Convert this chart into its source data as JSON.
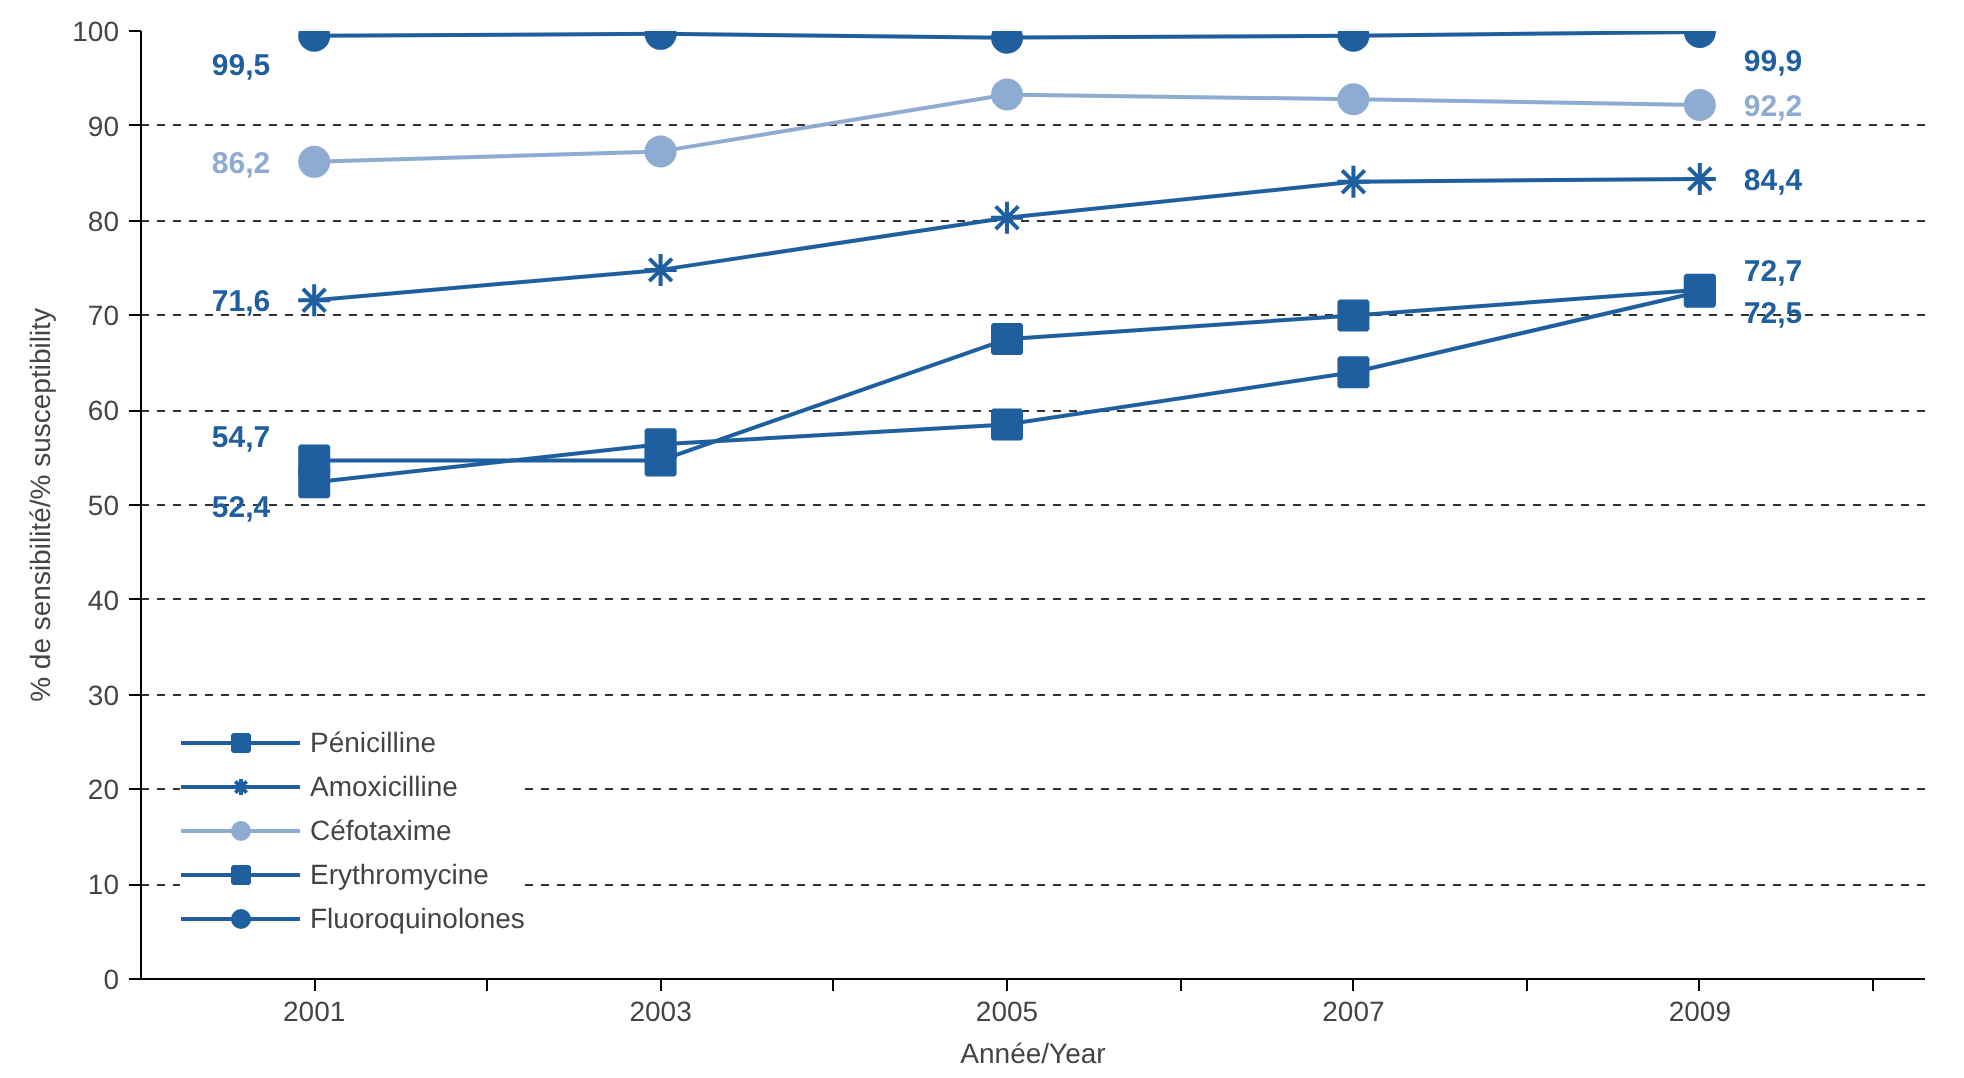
{
  "chart_data": {
    "type": "line",
    "xlabel": "Année/Year",
    "ylabel": "% de sensibilité/% susceptibility",
    "x": [
      2001,
      2003,
      2005,
      2007,
      2009
    ],
    "xlim": [
      2000,
      2010.3
    ],
    "xticks": [
      2001,
      {
        "value": 2002,
        "label": null
      },
      2003,
      {
        "value": 2004,
        "label": null
      },
      2005,
      {
        "value": 2006,
        "label": null
      },
      2007,
      {
        "value": 2008,
        "label": null
      },
      2009,
      {
        "value": 2010,
        "label": null
      }
    ],
    "ylim": [
      0,
      100
    ],
    "yticks": [
      0,
      10,
      20,
      30,
      40,
      50,
      60,
      70,
      80,
      90,
      100
    ],
    "grid": "y",
    "legend": "bottom left",
    "line_style": "solid",
    "series": [
      {
        "name": "Pénicilline",
        "color": "#1f5f9f",
        "marker": "square",
        "values": [
          54.7,
          54.7,
          67.5,
          70.0,
          72.7
        ],
        "value_labels": [
          "54,7",
          null,
          null,
          null,
          "72,7"
        ]
      },
      {
        "name": "Amoxicilline",
        "color": "#1f5f9f",
        "marker": "cross",
        "values": [
          71.6,
          74.8,
          80.3,
          84.1,
          84.4
        ],
        "value_labels": [
          "71,6",
          null,
          null,
          null,
          "84,4"
        ]
      },
      {
        "name": "Céfotaxime",
        "color": "#8eabd2",
        "marker": "circle",
        "values": [
          86.2,
          87.3,
          93.3,
          92.8,
          92.2
        ],
        "value_labels": [
          "86,2",
          null,
          null,
          null,
          "92,2"
        ]
      },
      {
        "name": "Erythromycine",
        "color": "#1f5f9f",
        "marker": "square",
        "values": [
          52.4,
          56.4,
          58.5,
          64.0,
          72.5
        ],
        "value_labels": [
          "52,4",
          null,
          null,
          null,
          "72,5"
        ]
      },
      {
        "name": "Fluoroquinolones",
        "color": "#1f5f9f",
        "marker": "circle",
        "values": [
          99.5,
          99.7,
          99.3,
          99.5,
          99.9
        ],
        "value_labels": [
          "99,5",
          null,
          null,
          null,
          "99,9"
        ]
      }
    ]
  }
}
